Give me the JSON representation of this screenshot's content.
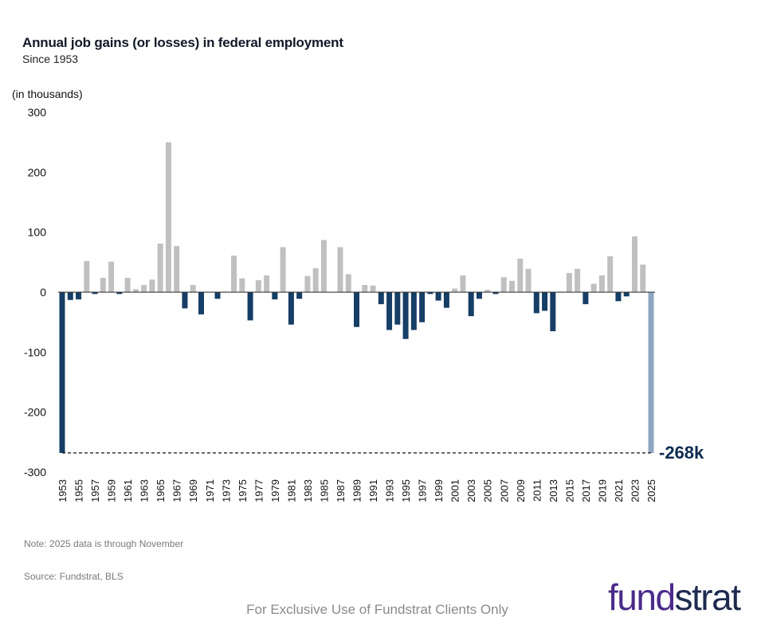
{
  "header": {
    "title": "Annual job gains (or losses) in federal employment",
    "subtitle": "Since 1953",
    "unit_label": "(in thousands)"
  },
  "footnotes": {
    "note": "Note: 2025 data is through November",
    "source": "Source: Fundstrat, BLS",
    "footer": "For Exclusive Use of Fundstrat Clients Only"
  },
  "logo": {
    "part1": "fund",
    "part2": "strat"
  },
  "colors": {
    "positive": "#c0c0c0",
    "negative": "#163e66",
    "highlight": "#8da7c0",
    "annotation": "#0f2c52"
  },
  "chart_data": {
    "type": "bar",
    "title": "Annual job gains (or losses) in federal employment",
    "subtitle": "Since 1953",
    "ylabel": "(in thousands)",
    "xlabel": "",
    "ylim": [
      -300,
      300
    ],
    "yticks": [
      300,
      200,
      100,
      0,
      -100,
      -200,
      -300
    ],
    "x": [
      1953,
      1954,
      1955,
      1956,
      1957,
      1958,
      1959,
      1960,
      1961,
      1962,
      1963,
      1964,
      1965,
      1966,
      1967,
      1968,
      1969,
      1970,
      1971,
      1972,
      1973,
      1974,
      1975,
      1976,
      1977,
      1978,
      1979,
      1980,
      1981,
      1982,
      1983,
      1984,
      1985,
      1986,
      1987,
      1988,
      1989,
      1990,
      1991,
      1992,
      1993,
      1994,
      1995,
      1996,
      1997,
      1998,
      1999,
      2000,
      2001,
      2002,
      2003,
      2004,
      2005,
      2006,
      2007,
      2008,
      2009,
      2010,
      2011,
      2012,
      2013,
      2014,
      2015,
      2016,
      2017,
      2018,
      2019,
      2020,
      2021,
      2022,
      2023,
      2024,
      2025
    ],
    "xticks_shown": [
      1953,
      1955,
      1957,
      1959,
      1961,
      1963,
      1965,
      1967,
      1969,
      1971,
      1973,
      1975,
      1977,
      1979,
      1981,
      1983,
      1985,
      1987,
      1989,
      1991,
      1993,
      1995,
      1997,
      1999,
      2001,
      2003,
      2005,
      2007,
      2009,
      2011,
      2013,
      2015,
      2017,
      2019,
      2021,
      2023,
      2025
    ],
    "values": [
      -268,
      -13,
      -12,
      52,
      -3,
      24,
      51,
      -3,
      24,
      5,
      12,
      21,
      81,
      250,
      77,
      -27,
      12,
      -37,
      0,
      -11,
      1,
      61,
      23,
      -47,
      20,
      28,
      -12,
      75,
      -54,
      -11,
      27,
      40,
      87,
      0,
      75,
      30,
      -58,
      12,
      11,
      -20,
      -63,
      -54,
      -78,
      -63,
      -50,
      -3,
      -14,
      -26,
      6,
      28,
      -40,
      -11,
      4,
      -3,
      25,
      19,
      56,
      39,
      -35,
      -31,
      -65,
      1,
      32,
      39,
      -20,
      14,
      28,
      60,
      -15,
      -7,
      93,
      46,
      -268
    ],
    "annotation": {
      "label": "-268k",
      "value": -268,
      "style": "dashed reference line"
    },
    "legend": "none",
    "grid": false
  }
}
